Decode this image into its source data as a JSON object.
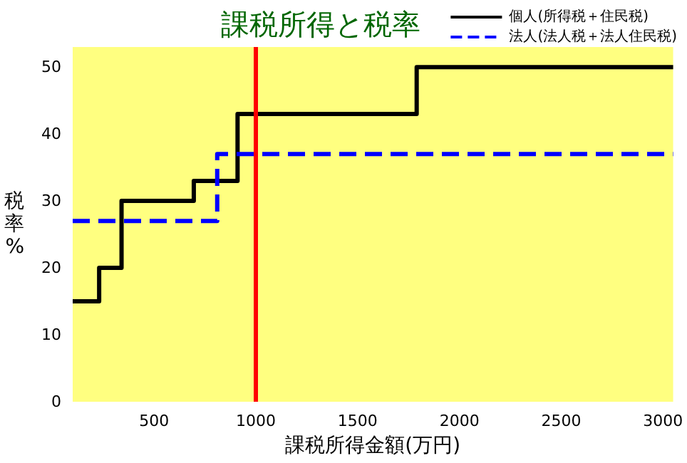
{
  "chart_data": {
    "type": "step",
    "title": "課税所得と税率",
    "xlabel": "課税所得金額(万円)",
    "ylabel": "税率%",
    "xlim": [
      100,
      3050
    ],
    "xticks": [
      500,
      1000,
      1500,
      2000,
      2500,
      3000
    ],
    "ylim": [
      0,
      53
    ],
    "yticks": [
      0,
      10,
      20,
      30,
      40,
      50
    ],
    "series": [
      {
        "name": "個人(所得税＋住民税)",
        "color": "#000000",
        "line_style": "solid",
        "x": [
          100,
          230,
          340,
          695,
          910,
          1790,
          3050
        ],
        "values": [
          15,
          20,
          30,
          33,
          43,
          50,
          50
        ]
      },
      {
        "name": "法人(法人税＋法人住民税)",
        "color": "#0000ff",
        "line_style": "dashed",
        "x": [
          100,
          810,
          3050
        ],
        "values": [
          27,
          37,
          37
        ]
      }
    ],
    "ref_lines": [
      {
        "axis": "x",
        "value": 1000,
        "color": "#ff0000"
      }
    ],
    "legend": "top right",
    "grid": false,
    "marker": "none"
  }
}
